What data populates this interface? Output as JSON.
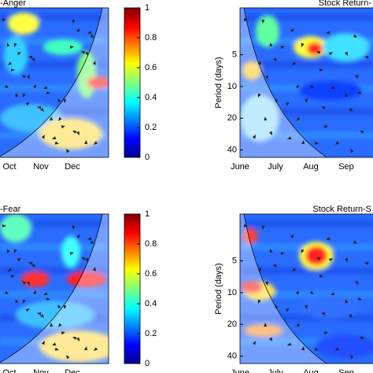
{
  "chart_data": [
    {
      "type": "heatmap",
      "title": "-Anger",
      "categories": [
        "Oct",
        "Nov",
        "Dec"
      ],
      "colorbar": {
        "zlim": [
          0,
          1
        ],
        "zticks": [
          0,
          0.2,
          0.4,
          0.6,
          0.8,
          1
        ]
      }
    },
    {
      "type": "heatmap",
      "title": "Stock Return-",
      "categories": [
        "June",
        "July",
        "Aug",
        "Sep"
      ],
      "ylabel": "Period (days)",
      "yscale": "log",
      "ylim": [
        1.8,
        47
      ],
      "yticks": [
        5,
        10,
        20,
        40
      ]
    },
    {
      "type": "heatmap",
      "title": "-Fear",
      "categories": [
        "Oct",
        "Nov",
        "Dec"
      ],
      "colorbar": {
        "zlim": [
          0,
          1
        ],
        "zticks": [
          0,
          0.2,
          0.4,
          0.6,
          0.8,
          1
        ]
      }
    },
    {
      "type": "heatmap",
      "title": "Stock Return-S",
      "categories": [
        "June",
        "July",
        "Aug",
        "Sep"
      ],
      "ylabel": "Period (days)",
      "yscale": "log",
      "ylim": [
        1.8,
        47
      ],
      "yticks": [
        5,
        10,
        20,
        40
      ]
    }
  ]
}
